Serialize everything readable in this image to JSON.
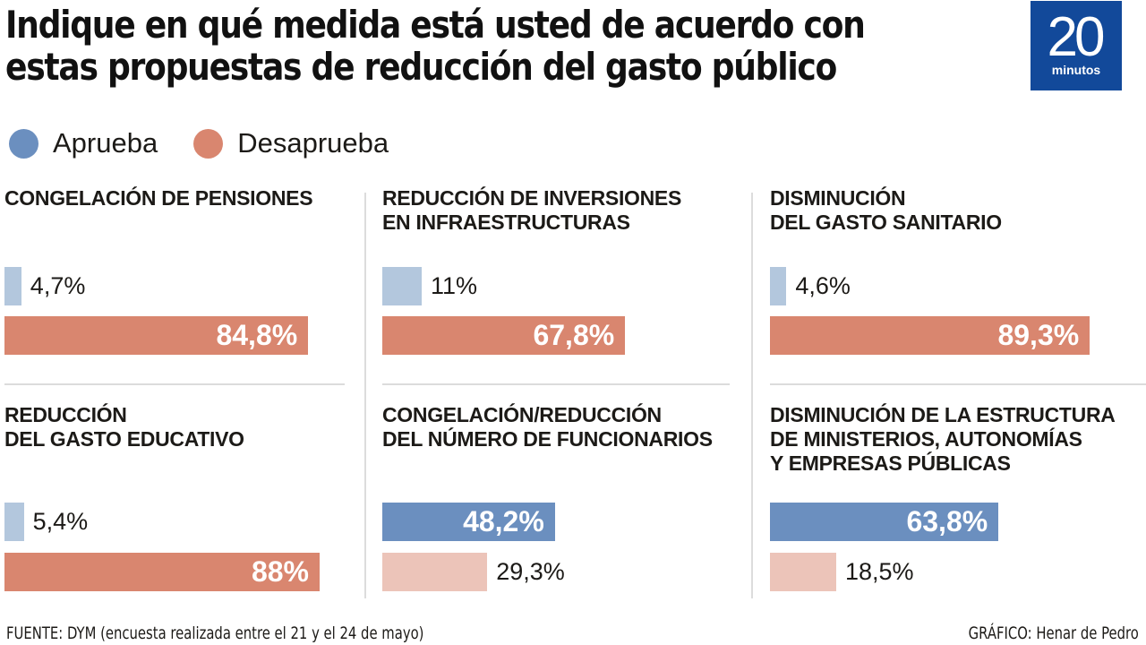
{
  "title_lines": [
    "Indique en qué medida está usted de acuerdo con",
    "estas propuestas de reducción del gasto público"
  ],
  "logo": {
    "number": "20",
    "word": "minutos",
    "bg_color": "#12499a"
  },
  "footer": {
    "source": "FUENTE: DYM (encuesta realizada entre el 21 y el 24 de mayo)",
    "credit": "GRÁFICO: Henar de Pedro"
  },
  "colors": {
    "aprueba": "#6b8fbf",
    "aprueba_light": "#b3c7dd",
    "desaprueba": "#d9866f",
    "desaprueba_light": "#ecc4b9"
  },
  "chart_data": {
    "type": "bar",
    "orientation": "horizontal",
    "title": "Indique en qué medida está usted de acuerdo con estas propuestas de reducción del gasto público",
    "legend": [
      {
        "name": "Aprueba",
        "color": "#6b8fbf"
      },
      {
        "name": "Desaprueba",
        "color": "#d9866f"
      }
    ],
    "legend_placement": "top-left",
    "unit": "%",
    "xlim": [
      0,
      100
    ],
    "grid": false,
    "panels": [
      {
        "title": "CONGELACIÓN DE PENSIONES",
        "aprueba": 4.7,
        "aprueba_label": "4,7%",
        "desaprueba": 84.8,
        "desaprueba_label": "84,8%",
        "majority": "desaprueba"
      },
      {
        "title": "REDUCCIÓN DE INVERSIONES\nEN INFRAESTRUCTURAS",
        "aprueba": 11,
        "aprueba_label": "11%",
        "desaprueba": 67.8,
        "desaprueba_label": "67,8%",
        "majority": "desaprueba"
      },
      {
        "title": "DISMINUCIÓN\nDEL GASTO SANITARIO",
        "aprueba": 4.6,
        "aprueba_label": "4,6%",
        "desaprueba": 89.3,
        "desaprueba_label": "89,3%",
        "majority": "desaprueba"
      },
      {
        "title": "REDUCCIÓN\nDEL GASTO EDUCATIVO",
        "aprueba": 5.4,
        "aprueba_label": "5,4%",
        "desaprueba": 88,
        "desaprueba_label": "88%",
        "majority": "desaprueba"
      },
      {
        "title": "CONGELACIÓN/REDUCCIÓN\nDEL NÚMERO DE FUNCIONARIOS",
        "aprueba": 48.2,
        "aprueba_label": "48,2%",
        "desaprueba": 29.3,
        "desaprueba_label": "29,3%",
        "majority": "aprueba"
      },
      {
        "title": "DISMINUCIÓN DE LA ESTRUCTURA\nDE MINISTERIOS, AUTONOMÍAS\nY EMPRESAS PÚBLICAS",
        "aprueba": 63.8,
        "aprueba_label": "63,8%",
        "desaprueba": 18.5,
        "desaprueba_label": "18,5%",
        "majority": "aprueba"
      }
    ]
  }
}
